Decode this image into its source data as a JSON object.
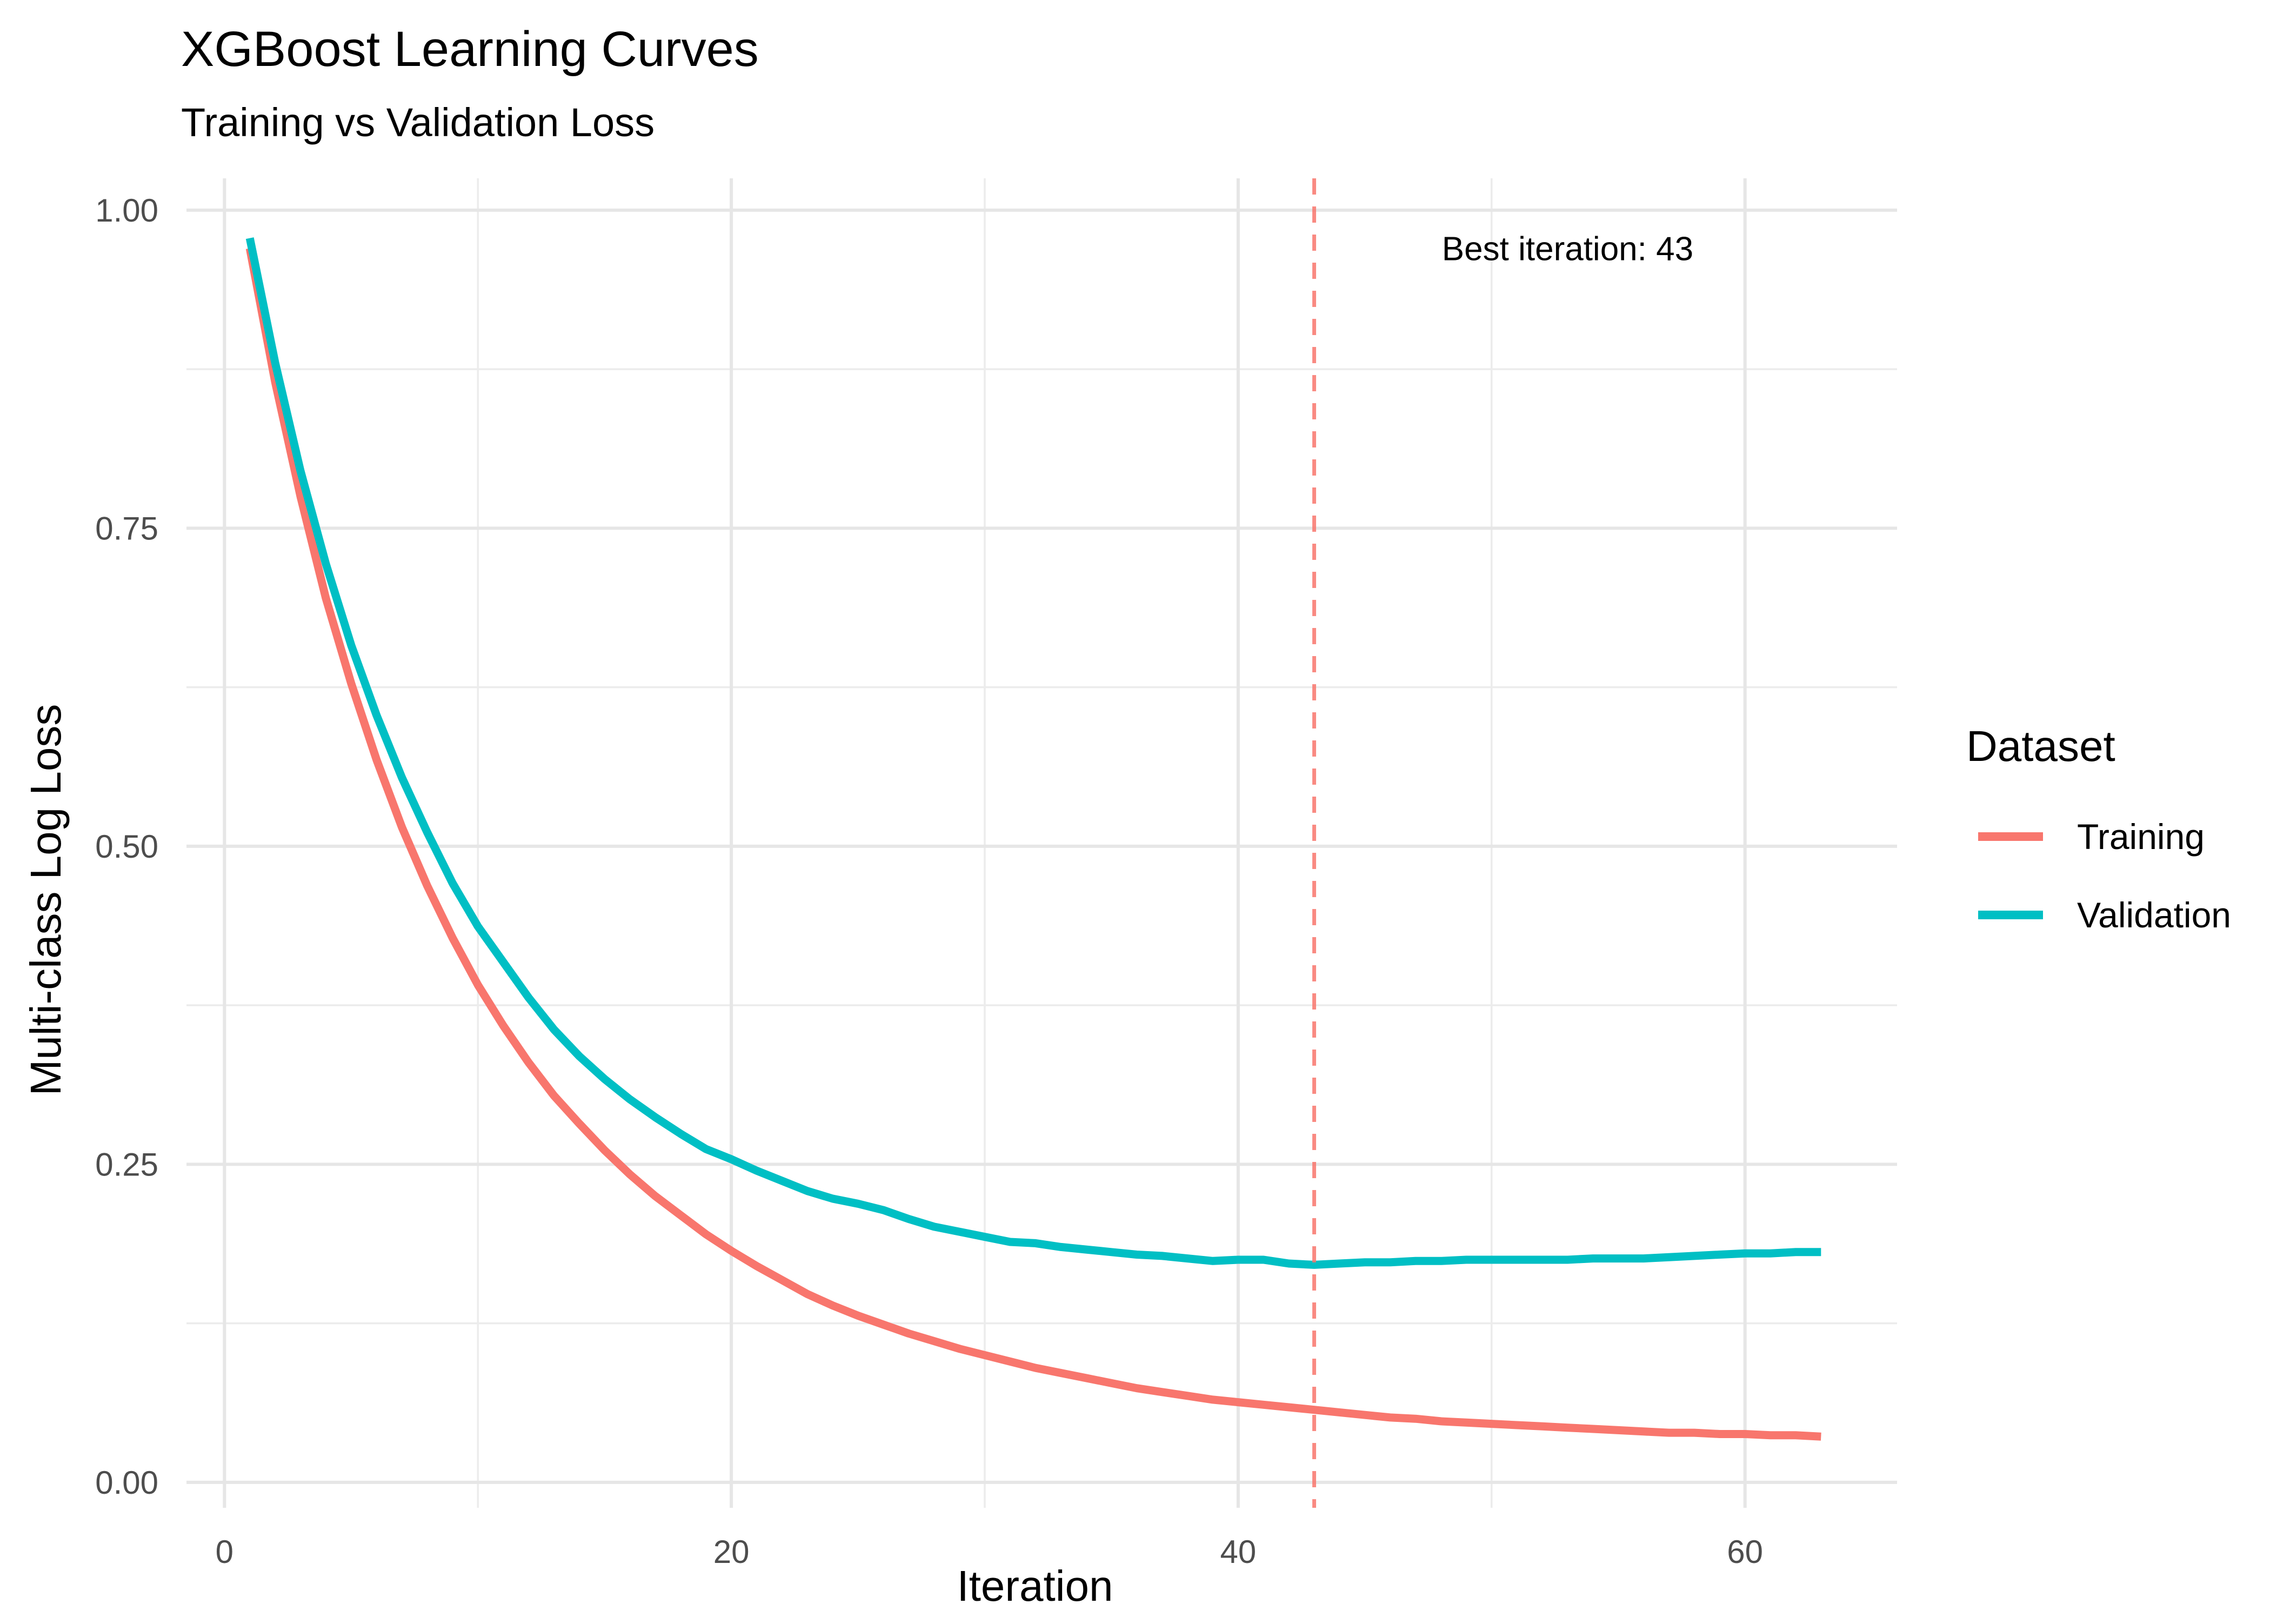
{
  "chart_data": {
    "type": "line",
    "title": "XGBoost Learning Curves",
    "subtitle": "Training vs Validation Loss",
    "xlabel": "Iteration",
    "ylabel": "Multi-class Log Loss",
    "xlim": [
      -1.5,
      66
    ],
    "ylim": [
      -0.02,
      1.025
    ],
    "x_ticks": [
      0,
      20,
      40,
      60
    ],
    "x_tick_labels": [
      "0",
      "20",
      "40",
      "60"
    ],
    "x_minor_ticks": [
      10,
      30,
      50
    ],
    "y_ticks": [
      0,
      0.25,
      0.5,
      0.75,
      1.0
    ],
    "y_tick_labels": [
      "0.00",
      "0.25",
      "0.50",
      "0.75",
      "1.00"
    ],
    "y_minor_ticks": [
      0.125,
      0.375,
      0.625,
      0.875
    ],
    "grid": true,
    "legend": {
      "title": "Dataset",
      "position": "right"
    },
    "x": [
      1,
      2,
      3,
      4,
      5,
      6,
      7,
      8,
      9,
      10,
      11,
      12,
      13,
      14,
      15,
      16,
      17,
      18,
      19,
      20,
      21,
      22,
      23,
      24,
      25,
      26,
      27,
      28,
      29,
      30,
      31,
      32,
      33,
      34,
      35,
      36,
      37,
      38,
      39,
      40,
      41,
      42,
      43,
      44,
      45,
      46,
      47,
      48,
      49,
      50,
      51,
      52,
      53,
      54,
      55,
      56,
      57,
      58,
      59,
      60,
      61,
      62,
      63
    ],
    "series": [
      {
        "name": "Training",
        "color": "#F8766D",
        "values": [
          0.97,
          0.865,
          0.775,
          0.695,
          0.628,
          0.568,
          0.515,
          0.469,
          0.428,
          0.391,
          0.359,
          0.33,
          0.304,
          0.282,
          0.261,
          0.242,
          0.225,
          0.21,
          0.195,
          0.182,
          0.17,
          0.159,
          0.148,
          0.139,
          0.131,
          0.124,
          0.117,
          0.111,
          0.105,
          0.1,
          0.095,
          0.09,
          0.086,
          0.082,
          0.078,
          0.074,
          0.071,
          0.068,
          0.065,
          0.063,
          0.061,
          0.059,
          0.057,
          0.055,
          0.053,
          0.051,
          0.05,
          0.048,
          0.047,
          0.046,
          0.045,
          0.044,
          0.043,
          0.042,
          0.041,
          0.04,
          0.039,
          0.039,
          0.038,
          0.038,
          0.037,
          0.037,
          0.036
        ]
      },
      {
        "name": "Validation",
        "color": "#00BFC4",
        "values": [
          0.978,
          0.88,
          0.795,
          0.722,
          0.658,
          0.603,
          0.554,
          0.511,
          0.471,
          0.437,
          0.409,
          0.381,
          0.356,
          0.335,
          0.317,
          0.301,
          0.287,
          0.274,
          0.262,
          0.254,
          0.245,
          0.237,
          0.229,
          0.223,
          0.219,
          0.214,
          0.207,
          0.201,
          0.197,
          0.193,
          0.189,
          0.188,
          0.185,
          0.183,
          0.181,
          0.179,
          0.178,
          0.176,
          0.174,
          0.175,
          0.175,
          0.172,
          0.171,
          0.172,
          0.173,
          0.173,
          0.174,
          0.174,
          0.175,
          0.175,
          0.175,
          0.175,
          0.175,
          0.176,
          0.176,
          0.176,
          0.177,
          0.178,
          0.179,
          0.18,
          0.18,
          0.181,
          0.181
        ]
      }
    ],
    "vline": {
      "x": 43,
      "color": "#F8766D",
      "style": "dashed"
    },
    "annotations": [
      {
        "text": "Best iteration: 43",
        "x": 53,
        "y": 0.97
      }
    ]
  }
}
